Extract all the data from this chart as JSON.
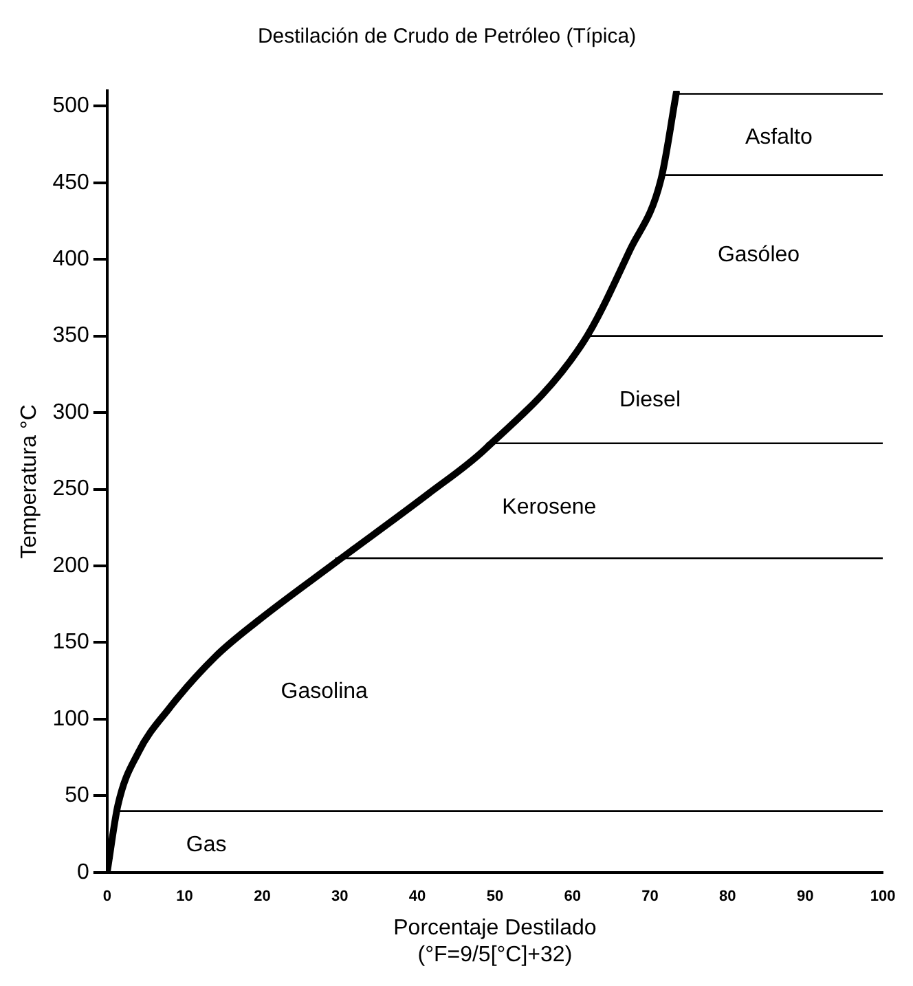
{
  "chart_data": {
    "type": "line",
    "title": "Destilación de Crudo de Petróleo (Típica)",
    "xlabel": "Porcentaje Destilado",
    "ylabel": "Temperatura °C",
    "xlim": [
      0,
      100
    ],
    "xticks": [
      0,
      10,
      20,
      30,
      40,
      50,
      60,
      70,
      80,
      90,
      100
    ],
    "ylim": [
      0,
      510
    ],
    "yticks": [
      0,
      50,
      100,
      150,
      200,
      250,
      300,
      350,
      400,
      450,
      500
    ],
    "grid": false,
    "legend": false,
    "marker": "none",
    "line_style": "solid",
    "series": [
      {
        "color": "#000000",
        "x": [
          0,
          1.4,
          4,
          8,
          14,
          19.4,
          29.4,
          41.4,
          48.7,
          61.4,
          67.4,
          71.4,
          73.4
        ],
        "values": [
          0,
          44,
          78,
          107,
          141,
          164,
          202,
          247,
          276,
          346,
          406,
          452,
          509
        ]
      },
      {
        "color": "#000000",
        "x": [
          1.2,
          100
        ],
        "values": [
          40,
          40
        ]
      },
      {
        "color": "#000000",
        "x": [
          29.5,
          100
        ],
        "values": [
          205,
          205
        ]
      },
      {
        "color": "#000000",
        "x": [
          49,
          100
        ],
        "values": [
          280,
          280
        ]
      },
      {
        "color": "#000000",
        "x": [
          62,
          100
        ],
        "values": [
          350,
          350
        ]
      },
      {
        "color": "#000000",
        "x": [
          71.4,
          100
        ],
        "values": [
          455,
          455
        ]
      },
      {
        "color": "#000000",
        "x": [
          73.6,
          100
        ],
        "values": [
          508,
          508
        ]
      }
    ],
    "annotations": [
      "Asfalto",
      "Gasóleo",
      "Diesel",
      "Kerosene",
      "Gasolina",
      "Gas",
      "(°F=9/5[°C]+32)"
    ]
  }
}
